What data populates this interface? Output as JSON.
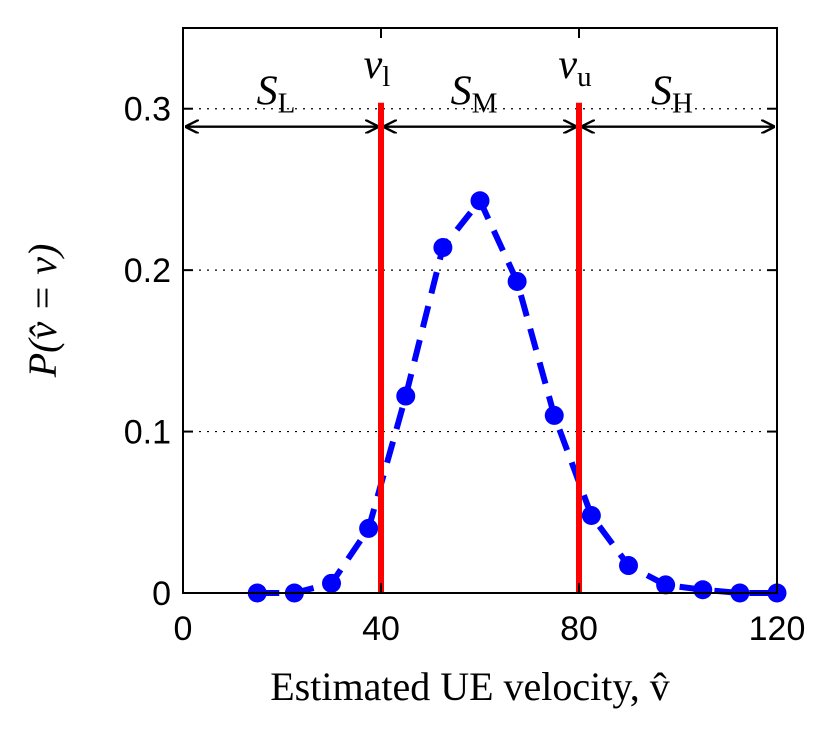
{
  "chart_data": {
    "type": "line",
    "xlabel": "Estimated UE velocity, v̂",
    "ylabel": "P(v̂ = ν)",
    "xlim": [
      0,
      120
    ],
    "ylim": [
      0,
      0.35
    ],
    "x_ticks": [
      0,
      40,
      80,
      120
    ],
    "x_tick_labels": [
      "0",
      "40",
      "80",
      "120"
    ],
    "y_ticks": [
      0,
      0.1,
      0.2,
      0.3
    ],
    "y_tick_labels": [
      "0",
      "0.1",
      "0.2",
      "0.3"
    ],
    "grid": "horizontal dotted",
    "series": [
      {
        "color": "#0000ff",
        "style": "dashed",
        "marker": "circle",
        "x": [
          15,
          22.5,
          30,
          37.5,
          45,
          52.5,
          60,
          67.5,
          75,
          82.5,
          90,
          97.5,
          105,
          112.5,
          120
        ],
        "y": [
          0.0,
          0.0,
          0.006,
          0.04,
          0.122,
          0.214,
          0.243,
          0.193,
          0.11,
          0.048,
          0.017,
          0.005,
          0.002,
          0.0,
          0.0
        ]
      }
    ],
    "thresholds": [
      {
        "label_main": "v",
        "label_sub": "l",
        "x": 40,
        "color": "#ff0000"
      },
      {
        "label_main": "v",
        "label_sub": "u",
        "x": 80,
        "color": "#ff0000"
      }
    ],
    "regions": [
      {
        "label_main": "S",
        "label_sub": "L",
        "x_from": 0,
        "x_to": 40
      },
      {
        "label_main": "S",
        "label_sub": "M",
        "x_from": 40,
        "x_to": 80
      },
      {
        "label_main": "S",
        "label_sub": "H",
        "x_from": 80,
        "x_to": 120
      }
    ],
    "arrow_y": 0.3
  }
}
